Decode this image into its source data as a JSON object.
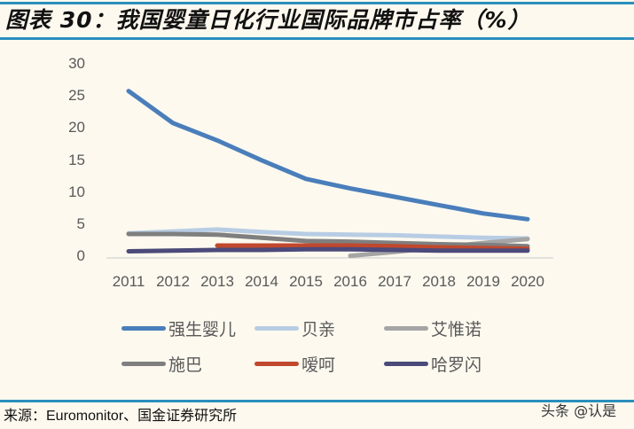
{
  "header": {
    "title": "图表 30：我国婴童日化行业国际品牌市占率（%）"
  },
  "footer": {
    "source": "来源：Euromonitor、国金证券研究所",
    "watermark": "头条 @认是"
  },
  "colors": {
    "rule": "#2a8fbd",
    "background": "#fdf9ef",
    "axis": "#d9d9d9"
  },
  "chart_data": {
    "type": "line",
    "title": "我国婴童日化行业国际品牌市占率（%）",
    "xlabel": "",
    "ylabel": "",
    "ylim": [
      0,
      30
    ],
    "yticks": [
      "0",
      "5",
      "10",
      "15",
      "20",
      "25",
      "30"
    ],
    "grid": false,
    "legend_position": "bottom",
    "categories": [
      "2011",
      "2012",
      "2013",
      "2014",
      "2015",
      "2016",
      "2017",
      "2018",
      "2019",
      "2020"
    ],
    "series": [
      {
        "name": "强生婴儿",
        "color": "#4a7ebb",
        "values": [
          25.9,
          20.9,
          18.2,
          15.1,
          12.2,
          10.7,
          9.4,
          8.1,
          6.8,
          5.9
        ]
      },
      {
        "name": "贝亲",
        "color": "#b8cde4",
        "values": [
          3.7,
          4.0,
          4.3,
          3.9,
          3.6,
          3.5,
          3.4,
          3.2,
          3.0,
          2.9
        ]
      },
      {
        "name": "艾惟诺",
        "color": "#a5a5a5",
        "values": [
          null,
          null,
          null,
          null,
          null,
          0.2,
          0.8,
          1.5,
          2.2,
          2.8
        ]
      },
      {
        "name": "施巴",
        "color": "#7f7f7f",
        "values": [
          3.6,
          3.6,
          3.5,
          3.0,
          2.5,
          2.4,
          2.2,
          2.0,
          1.9,
          1.7
        ]
      },
      {
        "name": "嗳呵",
        "color": "#c0482d",
        "values": [
          null,
          null,
          1.8,
          1.8,
          1.8,
          1.8,
          1.7,
          1.5,
          1.4,
          1.3
        ]
      },
      {
        "name": "哈罗闪",
        "color": "#4b4a7a",
        "values": [
          0.9,
          1.0,
          1.1,
          1.1,
          1.2,
          1.2,
          1.1,
          1.0,
          1.0,
          1.0
        ]
      }
    ]
  }
}
